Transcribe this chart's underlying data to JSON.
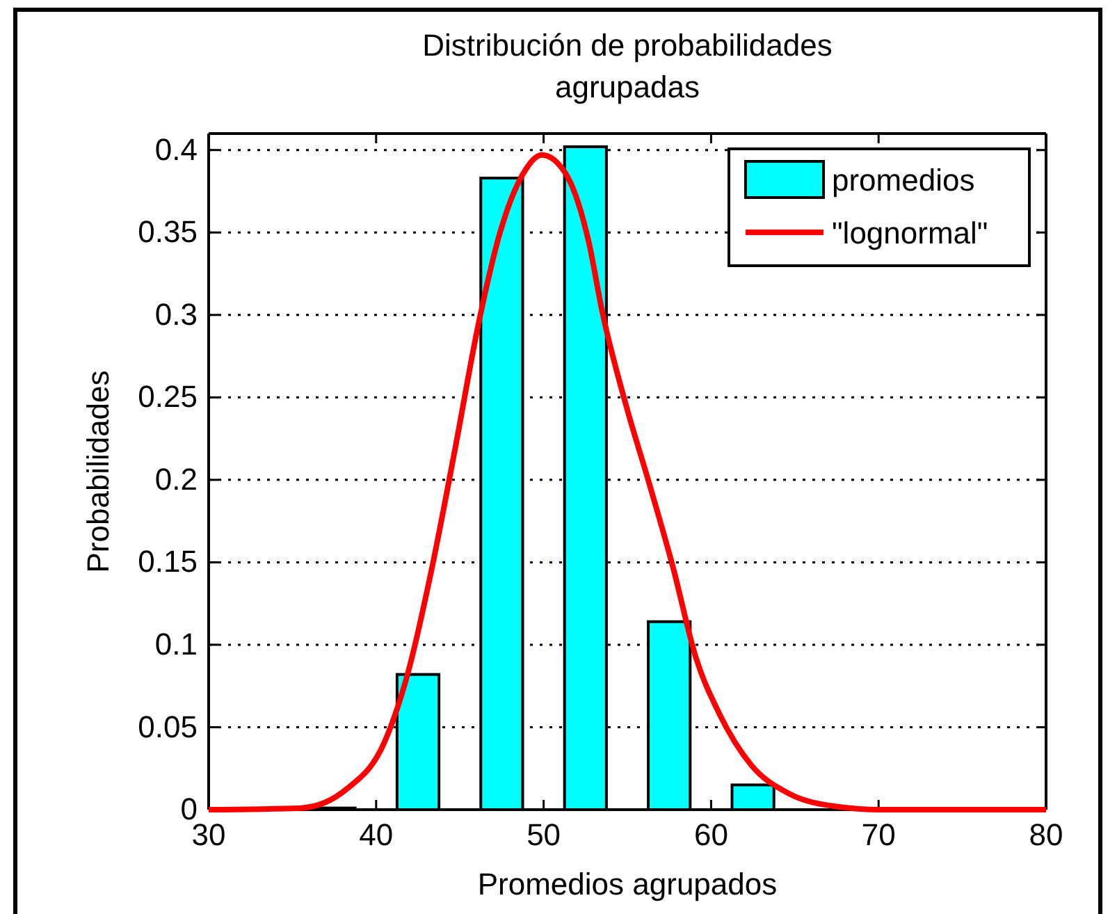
{
  "chart_data": {
    "type": "bar",
    "title": "Distribución de probabilidades\nagrupadas",
    "xlabel": "Promedios agrupados",
    "ylabel": "Probabilidades",
    "x": [
      37.5,
      42.5,
      47.5,
      52.5,
      57.5,
      62.5
    ],
    "series": [
      {
        "name": "promedios",
        "color": "#00ffff",
        "values": [
          0.001,
          0.082,
          0.383,
          0.402,
          0.114,
          0.015
        ]
      },
      {
        "name": "\"lognormal\"",
        "type": "line",
        "color": "#ff0000",
        "x": [
          30,
          35.5,
          38.3,
          40.5,
          41.9,
          43.3,
          44.7,
          46.1,
          47.4,
          48.8,
          49.9,
          51.3,
          52.7,
          53.5,
          54.9,
          56.3,
          57.7,
          59.1,
          60.5,
          62.4,
          64.6,
          67.4,
          70.1,
          80
        ],
        "values": [
          0,
          0.001,
          0.013,
          0.041,
          0.083,
          0.145,
          0.218,
          0.294,
          0.35,
          0.386,
          0.397,
          0.386,
          0.344,
          0.302,
          0.246,
          0.198,
          0.148,
          0.092,
          0.058,
          0.027,
          0.01,
          0.002,
          0,
          0
        ]
      }
    ],
    "xlim": [
      30,
      80
    ],
    "xticks": [
      30,
      40,
      50,
      60,
      70,
      80
    ],
    "ylim": [
      0,
      0.41
    ],
    "yticks": [
      0,
      0.05,
      0.1,
      0.15,
      0.2,
      0.25,
      0.3,
      0.35,
      0.4
    ],
    "grid": "y",
    "legend": "top right"
  }
}
